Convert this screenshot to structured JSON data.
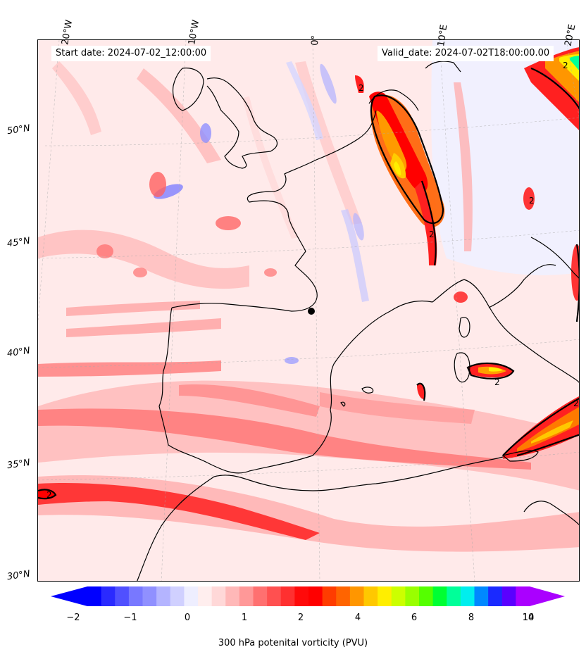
{
  "header": {
    "start_date": "Start date: 2024-07-02_12:00:00",
    "valid_date": "Valid_date: 2024-07-02T18:00:00.00"
  },
  "axes": {
    "lon_labels": [
      "20°W",
      "10°W",
      "0°",
      "10°E",
      "20°E"
    ],
    "lat_labels": [
      "50°N",
      "45°N",
      "40°N",
      "35°N",
      "30°N"
    ]
  },
  "colorbar": {
    "label": "300 hPa potenital vorticity (PVU)",
    "tick_labels": [
      "−2",
      "−1",
      "0",
      "1",
      "2",
      "4",
      "6",
      "8",
      "10",
      "14"
    ],
    "colors": [
      "#0000ff",
      "#2a2aff",
      "#5050ff",
      "#7878ff",
      "#9090ff",
      "#b4b4ff",
      "#d0d0ff",
      "#eeeeff",
      "#ffeeee",
      "#ffd8d8",
      "#ffb8b8",
      "#ff9898",
      "#ff7070",
      "#ff5050",
      "#ff3030",
      "#ff0a0a",
      "#ff0000",
      "#ff3c00",
      "#ff6400",
      "#ff9600",
      "#ffc800",
      "#ffee00",
      "#ccff00",
      "#99ff00",
      "#55ff00",
      "#00ff33",
      "#00ff99",
      "#00eeee",
      "#0088ff",
      "#1a2aff",
      "#5a00ff",
      "#aa00ff"
    ],
    "extend_min_color": "#0000ff",
    "extend_max_color": "#aa00ff"
  },
  "contour_labels": [
    "2",
    "2",
    "2",
    "2",
    "2",
    "2",
    "2"
  ]
}
